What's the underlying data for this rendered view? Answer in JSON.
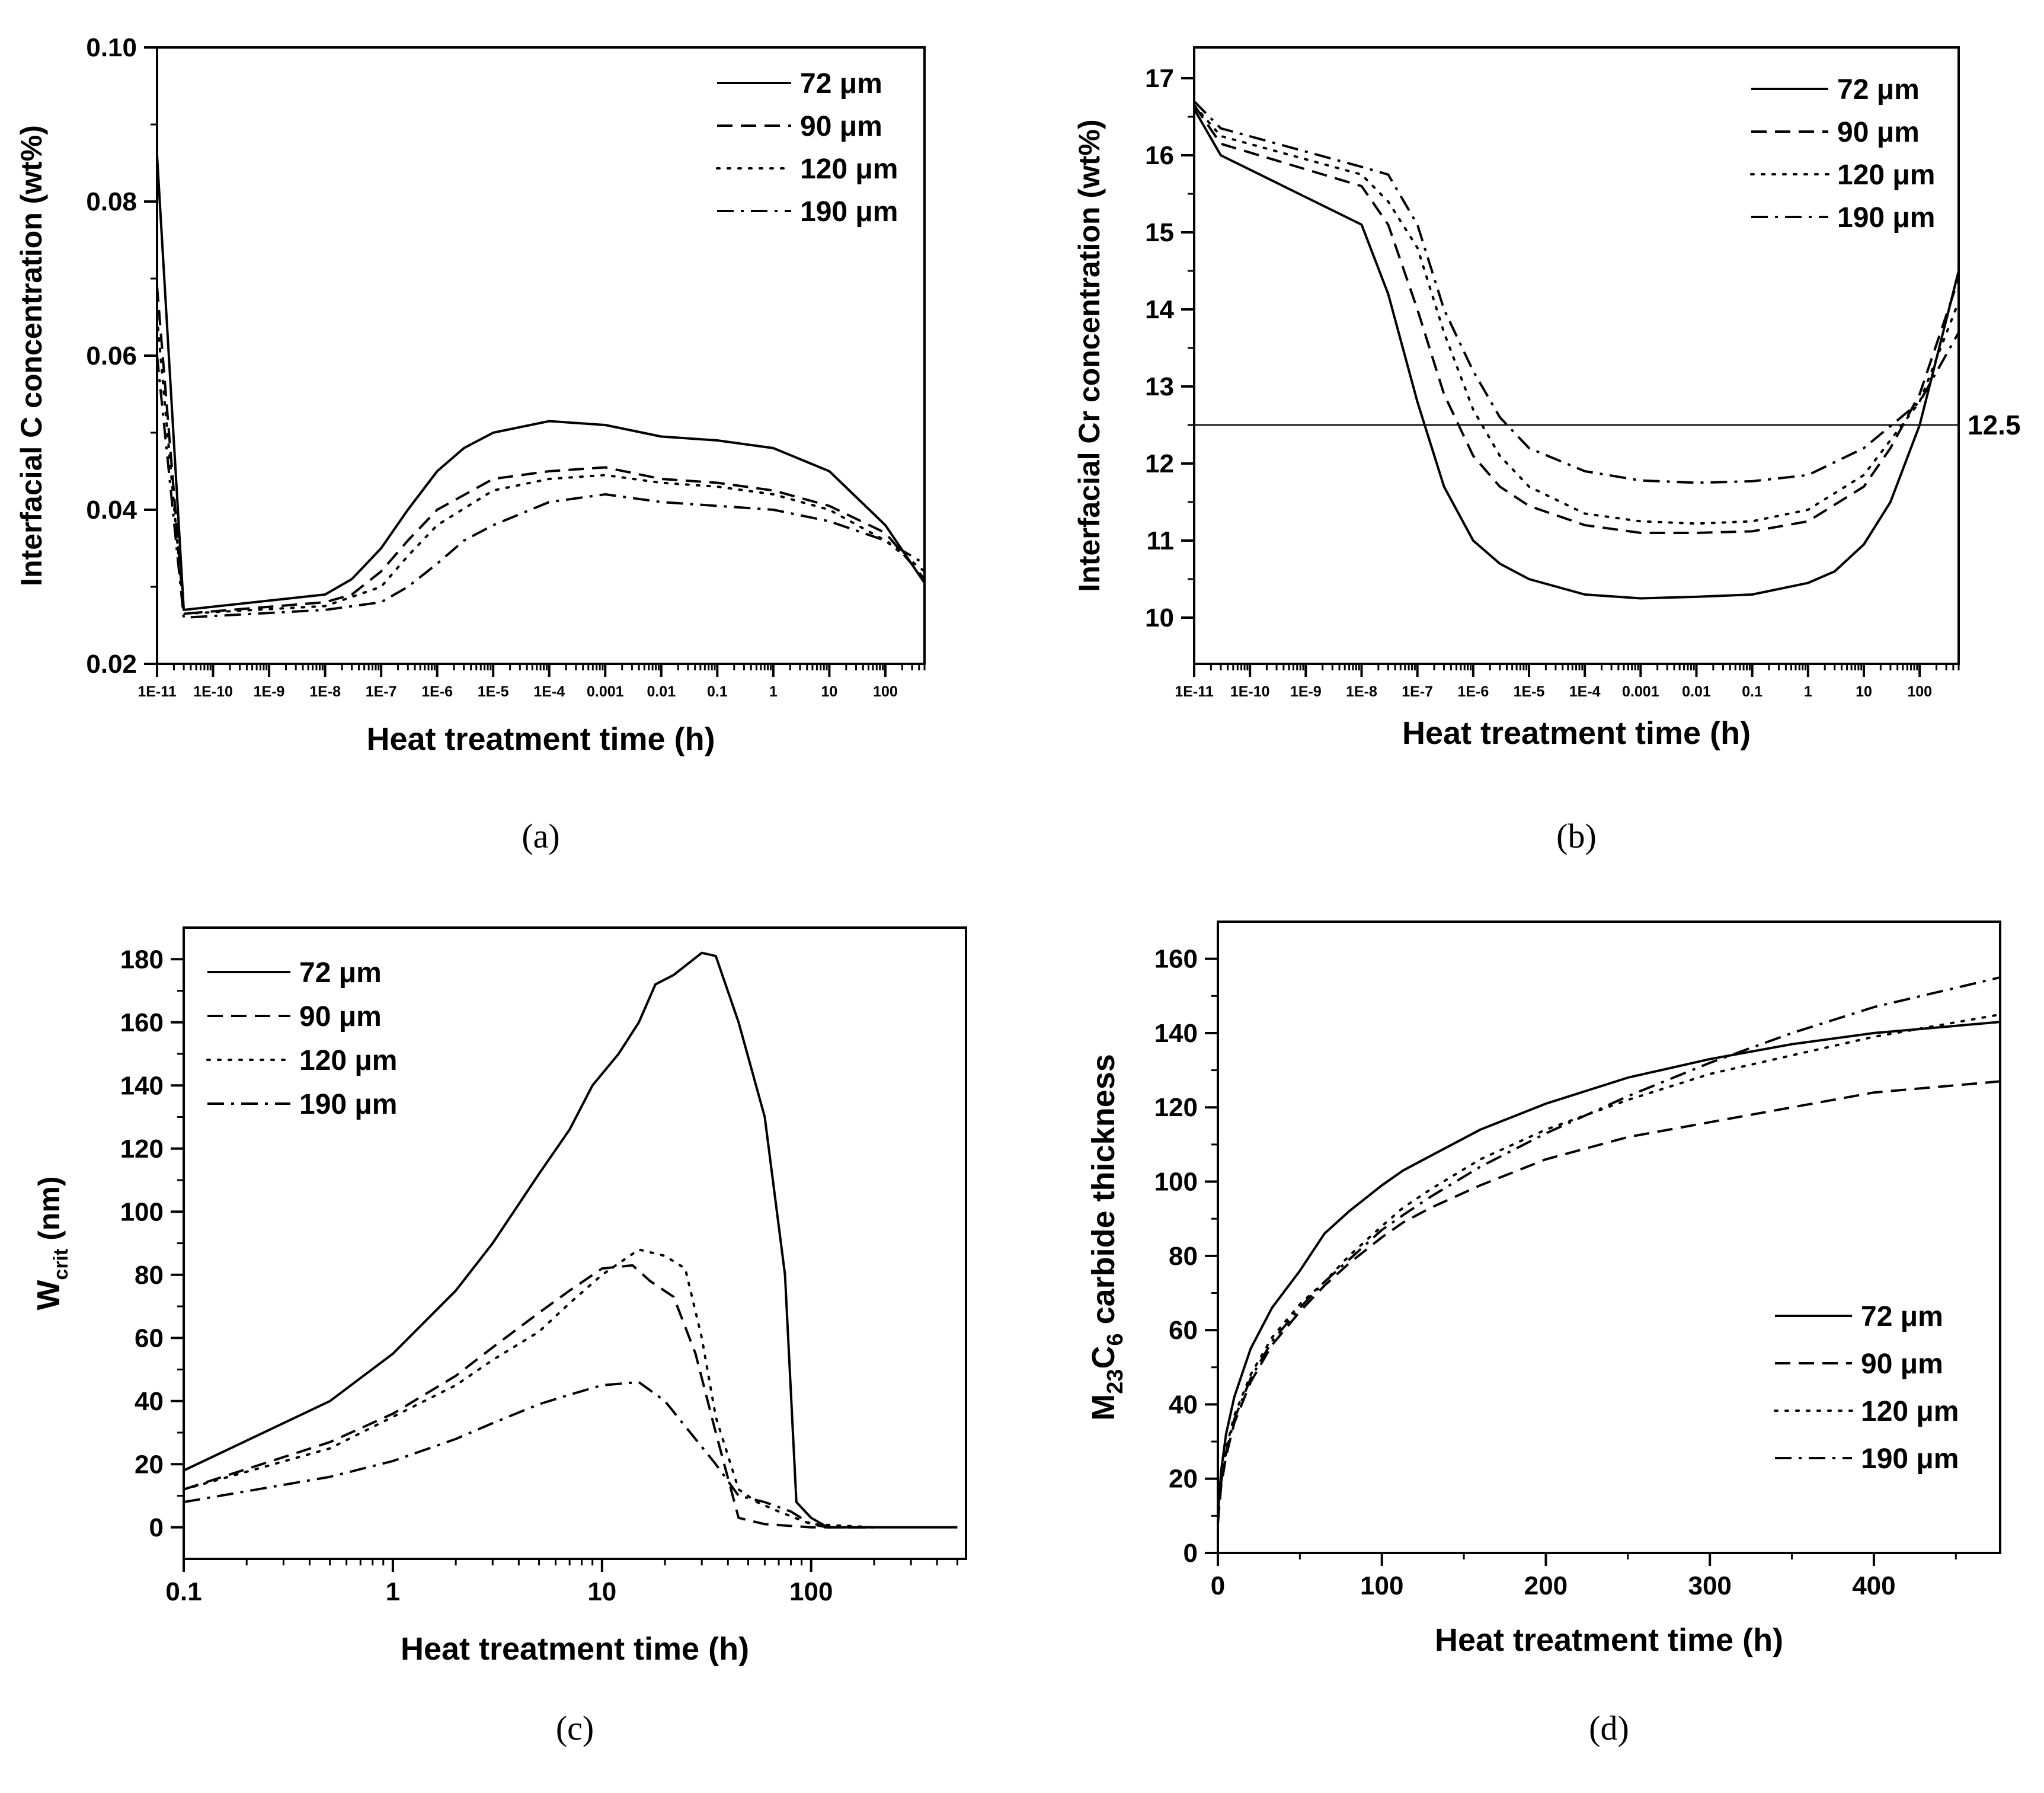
{
  "line_styles": {
    "72 μm": "solid",
    "90 μm": "dashed",
    "120 μm": "dotted",
    "190 μm": "dashdot"
  },
  "chart_data": [
    {
      "panel": "(a)",
      "type": "line",
      "xscale": "log",
      "xlim": [
        1e-11,
        500
      ],
      "ylim": [
        0.02,
        0.1
      ],
      "xticks": [
        1e-11,
        1e-10,
        1e-09,
        1e-08,
        1e-07,
        1e-06,
        1e-05,
        0.0001,
        0.001,
        0.01,
        0.1,
        1,
        10,
        100
      ],
      "xtick_labels": [
        "1E-11",
        "1E-10",
        "1E-9",
        "1E-8",
        "1E-7",
        "1E-6",
        "1E-5",
        "1E-4",
        "0.001",
        "0.01",
        "0.1",
        "1",
        "10",
        "100"
      ],
      "yticks": [
        0.02,
        0.04,
        0.06,
        0.08,
        0.1
      ],
      "ytick_labels": [
        "0.02",
        "0.04",
        "0.06",
        "0.08",
        "0.10"
      ],
      "xlabel": "Heat treatment time (h)",
      "ylabel": "Interfacial C concentration (wt%)",
      "legend_position": "top-right",
      "series": [
        {
          "name": "72 μm",
          "x": [
            1e-11,
            3e-11,
            1e-08,
            3e-08,
            1e-07,
            3e-07,
            1e-06,
            3e-06,
            1e-05,
            0.0001,
            0.001,
            0.01,
            0.1,
            1,
            10,
            100,
            500
          ],
          "y": [
            0.086,
            0.027,
            0.029,
            0.031,
            0.035,
            0.04,
            0.045,
            0.048,
            0.05,
            0.0515,
            0.051,
            0.0495,
            0.049,
            0.048,
            0.045,
            0.038,
            0.0305
          ]
        },
        {
          "name": "90 μm",
          "x": [
            1e-11,
            3e-11,
            1e-08,
            3e-08,
            1e-07,
            3e-07,
            1e-06,
            1e-05,
            0.0001,
            0.001,
            0.01,
            0.1,
            1,
            10,
            100,
            500
          ],
          "y": [
            0.069,
            0.0265,
            0.028,
            0.029,
            0.032,
            0.036,
            0.04,
            0.044,
            0.045,
            0.0455,
            0.044,
            0.0435,
            0.0425,
            0.0405,
            0.037,
            0.031
          ]
        },
        {
          "name": "120 μm",
          "x": [
            1e-11,
            3e-11,
            1e-08,
            1e-07,
            3e-07,
            1e-06,
            1e-05,
            0.0001,
            0.001,
            0.01,
            0.1,
            1,
            10,
            100,
            500
          ],
          "y": [
            0.065,
            0.0265,
            0.0275,
            0.03,
            0.034,
            0.038,
            0.0425,
            0.044,
            0.0445,
            0.0435,
            0.043,
            0.042,
            0.04,
            0.036,
            0.032
          ]
        },
        {
          "name": "190 μm",
          "x": [
            1e-11,
            3e-11,
            1e-08,
            1e-07,
            3e-07,
            1e-06,
            3e-06,
            1e-05,
            0.0001,
            0.001,
            0.01,
            0.1,
            1,
            10,
            100,
            500
          ],
          "y": [
            0.06,
            0.026,
            0.027,
            0.028,
            0.03,
            0.033,
            0.036,
            0.038,
            0.041,
            0.042,
            0.041,
            0.0405,
            0.04,
            0.0385,
            0.036,
            0.033
          ]
        }
      ],
      "annotations": []
    },
    {
      "panel": "(b)",
      "type": "line",
      "xscale": "log",
      "xlim": [
        1e-11,
        500
      ],
      "ylim": [
        9.4,
        17.4
      ],
      "xticks": [
        1e-11,
        1e-10,
        1e-09,
        1e-08,
        1e-07,
        1e-06,
        1e-05,
        0.0001,
        0.001,
        0.01,
        0.1,
        1,
        10,
        100
      ],
      "xtick_labels": [
        "1E-11",
        "1E-10",
        "1E-9",
        "1E-8",
        "1E-7",
        "1E-6",
        "1E-5",
        "1E-4",
        "0.001",
        "0.01",
        "0.1",
        "1",
        "10",
        "100"
      ],
      "yticks": [
        10,
        11,
        12,
        13,
        14,
        15,
        16,
        17
      ],
      "ytick_labels": [
        "10",
        "11",
        "12",
        "13",
        "14",
        "15",
        "16",
        "17"
      ],
      "xlabel": "Heat treatment time (h)",
      "ylabel": "Interfacial Cr concentration (wt%)",
      "legend_position": "top-right",
      "hline": {
        "y": 12.5,
        "label": "12.5"
      },
      "series": [
        {
          "name": "72 μm",
          "x": [
            1e-11,
            3e-11,
            1e-08,
            3e-08,
            1e-07,
            3e-07,
            1e-06,
            3e-06,
            1e-05,
            0.0001,
            0.001,
            0.01,
            0.1,
            1,
            3,
            10,
            30,
            100,
            500
          ],
          "y": [
            16.6,
            16.0,
            15.1,
            14.2,
            12.8,
            11.7,
            11.0,
            10.7,
            10.5,
            10.3,
            10.25,
            10.27,
            10.3,
            10.45,
            10.6,
            10.95,
            11.5,
            12.5,
            14.5
          ]
        },
        {
          "name": "90 μm",
          "x": [
            1e-11,
            3e-11,
            1e-08,
            3e-08,
            1e-07,
            3e-07,
            1e-06,
            3e-06,
            1e-05,
            0.0001,
            0.001,
            0.01,
            0.1,
            1,
            10,
            30,
            100,
            500
          ],
          "y": [
            16.65,
            16.15,
            15.6,
            15.1,
            14.0,
            12.9,
            12.1,
            11.7,
            11.45,
            11.2,
            11.1,
            11.1,
            11.12,
            11.25,
            11.7,
            12.2,
            12.9,
            14.4
          ]
        },
        {
          "name": "120 μm",
          "x": [
            1e-11,
            3e-11,
            1e-08,
            3e-08,
            1e-07,
            3e-07,
            1e-06,
            3e-06,
            1e-05,
            0.0001,
            0.001,
            0.01,
            0.1,
            1,
            10,
            100,
            500
          ],
          "y": [
            16.65,
            16.25,
            15.75,
            15.4,
            14.8,
            13.7,
            12.7,
            12.1,
            11.7,
            11.35,
            11.25,
            11.22,
            11.25,
            11.4,
            11.85,
            12.8,
            14.1
          ]
        },
        {
          "name": "190 μm",
          "x": [
            1e-11,
            3e-11,
            1e-08,
            3e-08,
            1e-07,
            3e-07,
            1e-06,
            3e-06,
            1e-05,
            0.0001,
            0.001,
            0.01,
            0.1,
            1,
            10,
            100,
            500
          ],
          "y": [
            16.7,
            16.35,
            15.85,
            15.75,
            15.1,
            14.0,
            13.2,
            12.6,
            12.2,
            11.9,
            11.78,
            11.75,
            11.77,
            11.85,
            12.2,
            12.8,
            13.7
          ]
        }
      ],
      "annotations": [
        "12.5"
      ]
    },
    {
      "panel": "(c)",
      "type": "line",
      "xscale": "log",
      "xlim": [
        0.1,
        550
      ],
      "ylim": [
        -10,
        190
      ],
      "xticks": [
        0.1,
        1,
        10,
        100
      ],
      "xtick_labels": [
        "0.1",
        "1",
        "10",
        "100"
      ],
      "yticks": [
        0,
        20,
        40,
        60,
        80,
        100,
        120,
        140,
        160,
        180
      ],
      "ytick_labels": [
        "0",
        "20",
        "40",
        "60",
        "80",
        "100",
        "120",
        "140",
        "160",
        "180"
      ],
      "xlabel": "Heat treatment time (h)",
      "ylabel_main": "W",
      "ylabel_sub": "crit",
      "ylabel_unit": " (nm)",
      "legend_position": "top-left",
      "series": [
        {
          "name": "72 μm",
          "x": [
            0.1,
            0.5,
            1,
            2,
            3,
            5,
            7,
            9,
            12,
            15,
            18,
            22,
            30,
            35,
            45,
            60,
            75,
            85,
            100,
            120,
            200,
            500
          ],
          "y": [
            18,
            40,
            55,
            75,
            90,
            112,
            126,
            140,
            150,
            160,
            172,
            175,
            182,
            181,
            160,
            130,
            80,
            8,
            3,
            0,
            0,
            0
          ]
        },
        {
          "name": "90 μm",
          "x": [
            0.1,
            0.5,
            1,
            2,
            3,
            5,
            7,
            10,
            14,
            17,
            22,
            28,
            35,
            45,
            60,
            100,
            120,
            200
          ],
          "y": [
            12,
            27,
            36,
            48,
            57,
            68,
            75,
            82,
            83,
            78,
            73,
            55,
            30,
            3,
            1,
            0,
            0,
            0
          ]
        },
        {
          "name": "120 μm",
          "x": [
            0.1,
            0.5,
            1,
            2,
            3,
            5,
            7,
            10,
            15,
            20,
            25,
            30,
            35,
            45,
            55,
            70,
            100,
            200
          ],
          "y": [
            12,
            25,
            35,
            45,
            53,
            62,
            71,
            80,
            88,
            86,
            82,
            60,
            35,
            12,
            8,
            5,
            1,
            0
          ]
        },
        {
          "name": "190 μm",
          "x": [
            0.1,
            0.5,
            1,
            2,
            3,
            5,
            7,
            10,
            15,
            20,
            25,
            35,
            45,
            60,
            80,
            100,
            120,
            200
          ],
          "y": [
            8,
            16,
            21,
            28,
            33,
            39,
            42,
            45,
            46,
            40,
            32,
            20,
            10,
            8,
            5,
            1,
            0,
            0
          ]
        }
      ],
      "annotations": []
    },
    {
      "panel": "(d)",
      "type": "line",
      "xscale": "linear",
      "xlim": [
        0,
        477
      ],
      "ylim": [
        0,
        170
      ],
      "xticks": [
        0,
        100,
        200,
        300,
        400
      ],
      "xtick_labels": [
        "0",
        "100",
        "200",
        "300",
        "400"
      ],
      "yticks": [
        0,
        20,
        40,
        60,
        80,
        100,
        120,
        140,
        160
      ],
      "ytick_labels": [
        "0",
        "20",
        "40",
        "60",
        "80",
        "100",
        "120",
        "140",
        "160"
      ],
      "xlabel": "Heat treatment time (h)",
      "ylabel_parts": [
        "M",
        "23",
        "C",
        "6",
        " carbide thickness"
      ],
      "legend_position": "bottom-right",
      "series": [
        {
          "name": "72 μm",
          "x": [
            0,
            2,
            5,
            10,
            20,
            33,
            50,
            65,
            80,
            100,
            113,
            130,
            160,
            200,
            250,
            300,
            350,
            400,
            477
          ],
          "y": [
            10,
            22,
            32,
            42,
            55,
            66,
            76,
            86,
            92,
            99,
            103,
            107,
            114,
            121,
            128,
            133,
            137,
            140,
            143
          ]
        },
        {
          "name": "90 μm",
          "x": [
            0,
            2,
            5,
            10,
            20,
            33,
            50,
            65,
            80,
            100,
            113,
            130,
            160,
            200,
            250,
            300,
            350,
            400,
            477
          ],
          "y": [
            8,
            18,
            26,
            35,
            46,
            56,
            65,
            72,
            78,
            85,
            89,
            93,
            99,
            106,
            112,
            116,
            120,
            124,
            127
          ]
        },
        {
          "name": "120 μm",
          "x": [
            0,
            2,
            5,
            10,
            20,
            33,
            50,
            65,
            80,
            100,
            113,
            130,
            160,
            200,
            250,
            300,
            350,
            400,
            477
          ],
          "y": [
            9,
            20,
            28,
            37,
            48,
            58,
            67,
            73,
            80,
            88,
            93,
            98,
            106,
            114,
            122,
            129,
            134,
            139,
            145
          ]
        },
        {
          "name": "190 μm",
          "x": [
            0,
            2,
            5,
            10,
            20,
            33,
            50,
            65,
            80,
            100,
            113,
            130,
            160,
            200,
            250,
            300,
            350,
            400,
            477
          ],
          "y": [
            8,
            19,
            27,
            36,
            47,
            57,
            66,
            73,
            79,
            87,
            91,
            96,
            104,
            113,
            123,
            132,
            140,
            147,
            155
          ]
        }
      ],
      "annotations": []
    }
  ]
}
